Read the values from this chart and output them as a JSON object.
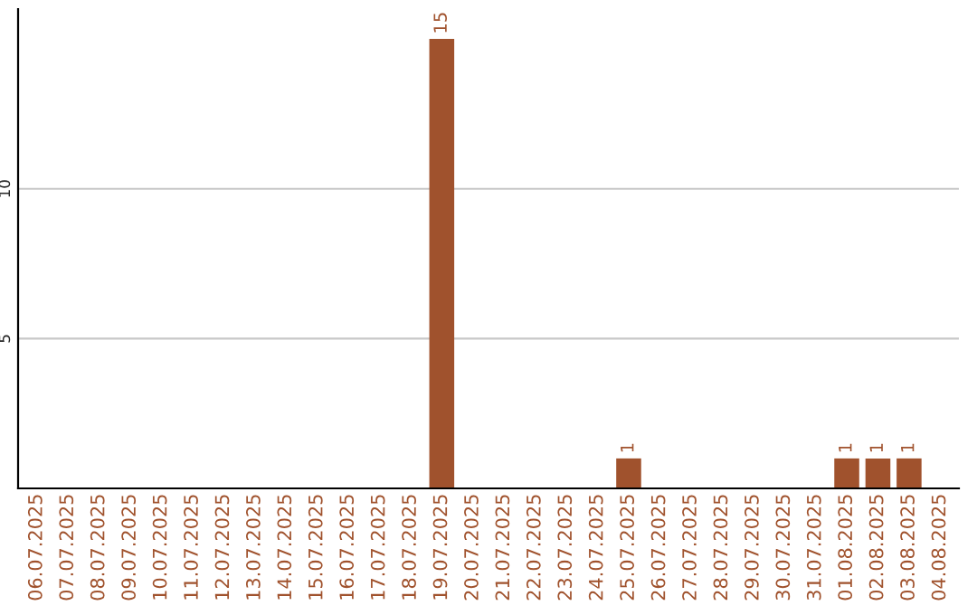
{
  "chart_data": {
    "type": "bar",
    "categories": [
      "06.07.2025",
      "07.07.2025",
      "08.07.2025",
      "09.07.2025",
      "10.07.2025",
      "11.07.2025",
      "12.07.2025",
      "13.07.2025",
      "14.07.2025",
      "15.07.2025",
      "16.07.2025",
      "17.07.2025",
      "18.07.2025",
      "19.07.2025",
      "20.07.2025",
      "21.07.2025",
      "22.07.2025",
      "23.07.2025",
      "24.07.2025",
      "25.07.2025",
      "26.07.2025",
      "27.07.2025",
      "28.07.2025",
      "29.07.2025",
      "30.07.2025",
      "31.07.2025",
      "01.08.2025",
      "02.08.2025",
      "03.08.2025",
      "04.08.2025"
    ],
    "values": [
      0,
      0,
      0,
      0,
      0,
      0,
      0,
      0,
      0,
      0,
      0,
      0,
      0,
      15,
      0,
      0,
      0,
      0,
      0,
      1,
      0,
      0,
      0,
      0,
      0,
      0,
      1,
      1,
      1,
      0
    ],
    "value_labels": [
      null,
      null,
      null,
      null,
      null,
      null,
      null,
      null,
      null,
      null,
      null,
      null,
      null,
      "15",
      null,
      null,
      null,
      null,
      null,
      "1",
      null,
      null,
      null,
      null,
      null,
      null,
      "1",
      "1",
      "1",
      null
    ],
    "color": "#a0522d",
    "ylim": [
      0,
      16
    ],
    "yticks": [
      5,
      10
    ],
    "grid": "y",
    "legend": false
  }
}
